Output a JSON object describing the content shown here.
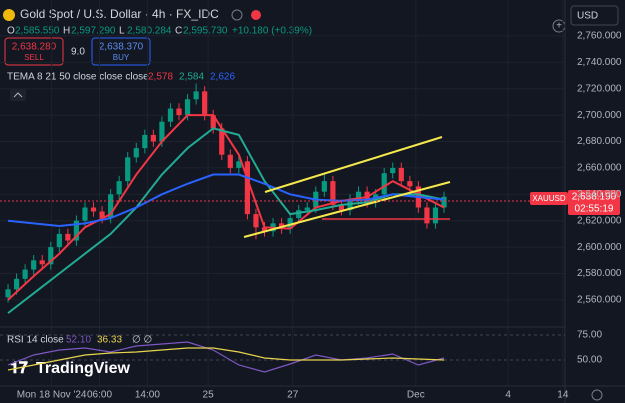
{
  "header": {
    "title": "Gold Spot / U.S. Dollar · 4h · FX_IDC",
    "ohlc": [
      {
        "key": "O",
        "value": "2,585.550"
      },
      {
        "key": "H",
        "value": "2,597.290"
      },
      {
        "key": "L",
        "value": "2,580.284"
      },
      {
        "key": "C",
        "value": "2,595.730"
      }
    ],
    "change": "+10.180 (+0.39%)",
    "currency": "USD"
  },
  "trade": {
    "sell_price": "2,638.280",
    "sell": "SELL",
    "spread": "9.0",
    "buy_price": "2,638.370",
    "buy": "BUY"
  },
  "price_label": {
    "symbol": "XAUUSD",
    "price": "2,638.190",
    "countdown": "02:55:19"
  },
  "logo": "TradingView",
  "chart_data": [
    {
      "type": "candlestick",
      "x": [
        0,
        1,
        2,
        3,
        4,
        5,
        6,
        7,
        8,
        9,
        10,
        11,
        12,
        13,
        14,
        15,
        16,
        17,
        18,
        19,
        20,
        21,
        22,
        23,
        24,
        25,
        26,
        27,
        28,
        29,
        30,
        31,
        32,
        33,
        34,
        35,
        36,
        37,
        38,
        39,
        40,
        41,
        42,
        43,
        44,
        45,
        46,
        47,
        48,
        49,
        50,
        51
      ],
      "open": [
        2562,
        2568,
        2576,
        2583,
        2590,
        2587,
        2600,
        2610,
        2605,
        2620,
        2630,
        2627,
        2622,
        2640,
        2650,
        2668,
        2675,
        2685,
        2680,
        2695,
        2705,
        2700,
        2712,
        2718,
        2700,
        2690,
        2670,
        2660,
        2665,
        2625,
        2615,
        2612,
        2618,
        2614,
        2622,
        2628,
        2630,
        2642,
        2650,
        2632,
        2628,
        2636,
        2642,
        2634,
        2640,
        2656,
        2660,
        2650,
        2646,
        2630,
        2618,
        2630
      ],
      "high": [
        2572,
        2580,
        2587,
        2594,
        2594,
        2604,
        2614,
        2614,
        2624,
        2634,
        2634,
        2631,
        2644,
        2654,
        2672,
        2679,
        2689,
        2689,
        2699,
        2709,
        2709,
        2716,
        2724,
        2722,
        2704,
        2694,
        2674,
        2669,
        2669,
        2629,
        2619,
        2622,
        2622,
        2626,
        2632,
        2634,
        2646,
        2656,
        2654,
        2636,
        2640,
        2646,
        2646,
        2644,
        2660,
        2664,
        2664,
        2654,
        2650,
        2634,
        2634,
        2642
      ],
      "low": [
        2558,
        2564,
        2572,
        2579,
        2583,
        2583,
        2596,
        2601,
        2601,
        2616,
        2623,
        2618,
        2618,
        2636,
        2646,
        2664,
        2671,
        2676,
        2676,
        2691,
        2696,
        2696,
        2708,
        2696,
        2686,
        2666,
        2656,
        2656,
        2621,
        2606,
        2608,
        2608,
        2610,
        2610,
        2618,
        2624,
        2626,
        2638,
        2628,
        2624,
        2624,
        2632,
        2630,
        2630,
        2636,
        2652,
        2646,
        2642,
        2626,
        2614,
        2614,
        2626
      ],
      "close": [
        2568,
        2576,
        2583,
        2590,
        2587,
        2600,
        2610,
        2605,
        2620,
        2630,
        2627,
        2622,
        2640,
        2650,
        2668,
        2675,
        2685,
        2680,
        2695,
        2705,
        2700,
        2712,
        2718,
        2700,
        2690,
        2670,
        2660,
        2665,
        2625,
        2615,
        2612,
        2618,
        2614,
        2622,
        2628,
        2630,
        2642,
        2650,
        2632,
        2628,
        2636,
        2642,
        2634,
        2640,
        2656,
        2660,
        2650,
        2646,
        2630,
        2618,
        2630,
        2638.19
      ],
      "up_color": "#089981",
      "down_color": "#f23645",
      "indicator_title": "TEMA 8 21 50 close close close",
      "indicator_x": [
        0,
        3,
        6,
        9,
        12,
        15,
        18,
        21,
        24,
        27,
        30,
        33,
        36,
        39,
        42,
        45,
        48,
        51
      ],
      "indicators": [
        {
          "name": "8",
          "color": "#f23645",
          "legend_value": "2,578",
          "values": [
            2560,
            2578,
            2595,
            2615,
            2625,
            2655,
            2680,
            2700,
            2700,
            2670,
            2615,
            2614,
            2630,
            2635,
            2638,
            2650,
            2640,
            2630
          ]
        },
        {
          "name": "21",
          "color": "#22ab94",
          "legend_value": "2,584",
          "values": [
            2550,
            2565,
            2580,
            2595,
            2610,
            2630,
            2655,
            2675,
            2690,
            2685,
            2650,
            2625,
            2628,
            2632,
            2634,
            2640,
            2640,
            2636
          ]
        },
        {
          "name": "50",
          "color": "#2962ff",
          "legend_value": "2,626",
          "values": [
            2620,
            2618,
            2616,
            2618,
            2622,
            2630,
            2640,
            2648,
            2655,
            2655,
            2648,
            2640,
            2636,
            2635,
            2636,
            2640,
            2638,
            2636
          ]
        }
      ],
      "xlim": [
        -0.94,
        65.15
      ],
      "xticks": [
        {
          "value": 5.1,
          "label": "Mon 18 Nov '24"
        },
        {
          "value": 10.7,
          "label": "06:00"
        },
        {
          "value": 16.3,
          "label": "14:00"
        },
        {
          "value": 23.4,
          "label": "25"
        },
        {
          "value": 33.3,
          "label": "27"
        },
        {
          "value": 47.7,
          "label": "Dec"
        },
        {
          "value": 58.5,
          "label": "4"
        },
        {
          "value": 64.9,
          "label": "14"
        }
      ],
      "ylim": [
        2541,
        2766
      ],
      "yticks": [
        {
          "value": 2760,
          "label": "2,760.000"
        },
        {
          "value": 2740,
          "label": "2,740.000"
        },
        {
          "value": 2720,
          "label": "2,720.000"
        },
        {
          "value": 2700,
          "label": "2,700.000"
        },
        {
          "value": 2680,
          "label": "2,680.000"
        },
        {
          "value": 2660,
          "label": "2,660.000"
        },
        {
          "value": 2640,
          "label": "2,640.000"
        },
        {
          "value": 2620,
          "label": "2,620.000"
        },
        {
          "value": 2600,
          "label": "2,600.000"
        },
        {
          "value": 2580,
          "label": "2,580.000"
        },
        {
          "value": 2560,
          "label": "2,560.000"
        }
      ],
      "grid": true
    },
    {
      "type": "line",
      "title": "RSI 14 close",
      "extra": "∅ ∅",
      "x": [
        0,
        3,
        6,
        9,
        12,
        15,
        18,
        21,
        24,
        27,
        30,
        33,
        36,
        39,
        42,
        45,
        48,
        51
      ],
      "series": [
        {
          "name": "RSI",
          "color": "#7e57c2",
          "legend_value": "52.10",
          "values": [
            45,
            55,
            60,
            62,
            58,
            64,
            66,
            68,
            60,
            45,
            38,
            46,
            55,
            50,
            52,
            56,
            45,
            52
          ]
        },
        {
          "name": "MA",
          "color": "#e8d44d",
          "legend_value": "36.33",
          "values": [
            40,
            45,
            50,
            55,
            57,
            58,
            60,
            62,
            62,
            58,
            52,
            50,
            50,
            50,
            51,
            52,
            51,
            50
          ]
        }
      ],
      "xlim": [
        -0.94,
        65.15
      ],
      "ylim": [
        24,
        82
      ],
      "yticks": [
        {
          "value": 75,
          "label": "75.00"
        },
        {
          "value": 50,
          "label": "50.00"
        }
      ],
      "grid": true
    }
  ]
}
